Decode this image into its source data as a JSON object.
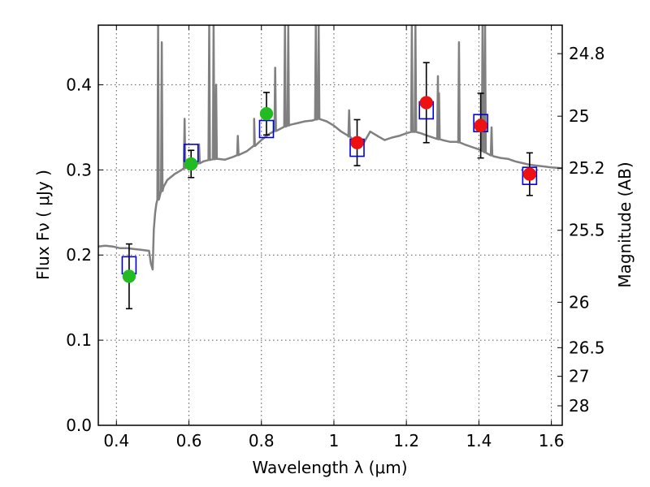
{
  "chart_data": {
    "type": "scatter",
    "xlabel": "Wavelength  λ (μm)",
    "ylabel": "Flux  Fν  ( μJy )",
    "y2label": "Magnitude (AB)",
    "xlim": [
      0.35,
      1.63
    ],
    "ylim": [
      0.0,
      0.47
    ],
    "grid": true,
    "x_ticks": [
      0.4,
      0.6,
      0.8,
      1.0,
      1.2,
      1.4,
      1.6
    ],
    "x_tick_labels": [
      "0.4",
      "0.6",
      "0.8",
      "1",
      "1.2",
      "1.4",
      "1.6"
    ],
    "y_ticks": [
      0.0,
      0.1,
      0.2,
      0.3,
      0.4
    ],
    "y_tick_labels": [
      "0.0",
      "0.1",
      "0.2",
      "0.3",
      "0.4"
    ],
    "y2_tick_labels": [
      "24.8",
      "25",
      "25.2",
      "25.5",
      "26",
      "26.5",
      "27",
      "28"
    ],
    "colors": {
      "model": "#808080",
      "model_flux": "#0000dd",
      "optical_obs": "#22bb22",
      "nir_obs": "#ee1111",
      "errorbar": "#000000",
      "grid": "#555555"
    },
    "spectrum": {
      "x": [
        0.35,
        0.37,
        0.39,
        0.41,
        0.43,
        0.45,
        0.47,
        0.49,
        0.495,
        0.5,
        0.503,
        0.507,
        0.51,
        0.52,
        0.53,
        0.54,
        0.56,
        0.58,
        0.6,
        0.62,
        0.64,
        0.66,
        0.68,
        0.7,
        0.72,
        0.74,
        0.76,
        0.78,
        0.8,
        0.82,
        0.84,
        0.86,
        0.88,
        0.9,
        0.92,
        0.94,
        0.96,
        0.98,
        1.0,
        1.02,
        1.04,
        1.06,
        1.08,
        1.1,
        1.12,
        1.14,
        1.16,
        1.18,
        1.2,
        1.22,
        1.24,
        1.26,
        1.28,
        1.3,
        1.32,
        1.34,
        1.36,
        1.38,
        1.4,
        1.42,
        1.44,
        1.46,
        1.48,
        1.5,
        1.52,
        1.54,
        1.56,
        1.58,
        1.6,
        1.63
      ],
      "y": [
        0.21,
        0.211,
        0.21,
        0.208,
        0.208,
        0.207,
        0.206,
        0.205,
        0.19,
        0.183,
        0.23,
        0.25,
        0.26,
        0.27,
        0.28,
        0.288,
        0.295,
        0.3,
        0.305,
        0.306,
        0.31,
        0.312,
        0.313,
        0.312,
        0.315,
        0.318,
        0.322,
        0.328,
        0.335,
        0.342,
        0.346,
        0.35,
        0.353,
        0.355,
        0.357,
        0.358,
        0.36,
        0.357,
        0.352,
        0.345,
        0.34,
        0.332,
        0.33,
        0.345,
        0.34,
        0.335,
        0.338,
        0.34,
        0.343,
        0.345,
        0.343,
        0.34,
        0.337,
        0.335,
        0.333,
        0.333,
        0.33,
        0.327,
        0.324,
        0.32,
        0.316,
        0.314,
        0.313,
        0.31,
        0.308,
        0.306,
        0.305,
        0.304,
        0.303,
        0.302
      ]
    },
    "emission_lines": [
      {
        "x": 0.515,
        "peak": 0.47
      },
      {
        "x": 0.525,
        "peak": 0.45
      },
      {
        "x": 0.588,
        "peak": 0.36
      },
      {
        "x": 0.628,
        "peak": 0.33
      },
      {
        "x": 0.656,
        "peak": 0.47
      },
      {
        "x": 0.668,
        "peak": 0.47
      },
      {
        "x": 0.675,
        "peak": 0.4
      },
      {
        "x": 0.735,
        "peak": 0.34
      },
      {
        "x": 0.78,
        "peak": 0.36
      },
      {
        "x": 0.838,
        "peak": 0.42
      },
      {
        "x": 0.865,
        "peak": 0.47
      },
      {
        "x": 0.874,
        "peak": 0.47
      },
      {
        "x": 0.95,
        "peak": 0.47
      },
      {
        "x": 0.958,
        "peak": 0.47
      },
      {
        "x": 1.042,
        "peak": 0.37
      },
      {
        "x": 1.215,
        "peak": 0.47
      },
      {
        "x": 1.225,
        "peak": 0.47
      },
      {
        "x": 1.287,
        "peak": 0.41
      },
      {
        "x": 1.29,
        "peak": 0.39
      },
      {
        "x": 1.345,
        "peak": 0.45
      },
      {
        "x": 1.41,
        "peak": 0.47
      },
      {
        "x": 1.417,
        "peak": 0.47
      },
      {
        "x": 1.435,
        "peak": 0.35
      }
    ],
    "series": [
      {
        "kind": "model_flux",
        "x": [
          0.435,
          0.606,
          0.814,
          1.064,
          1.255,
          1.405,
          1.54
        ],
        "values": [
          0.188,
          0.32,
          0.348,
          0.326,
          0.37,
          0.355,
          0.293
        ]
      },
      {
        "kind": "optical_obs",
        "x": [
          0.435,
          0.606,
          0.814
        ],
        "values": [
          0.175,
          0.307,
          0.366
        ],
        "yerr": [
          0.038,
          0.016,
          0.025
        ]
      },
      {
        "kind": "nir_obs",
        "x": [
          1.064,
          1.255,
          1.405,
          1.54
        ],
        "values": [
          0.332,
          0.379,
          0.352,
          0.295
        ],
        "yerr": [
          0.027,
          0.047,
          0.038,
          0.025
        ]
      }
    ]
  }
}
